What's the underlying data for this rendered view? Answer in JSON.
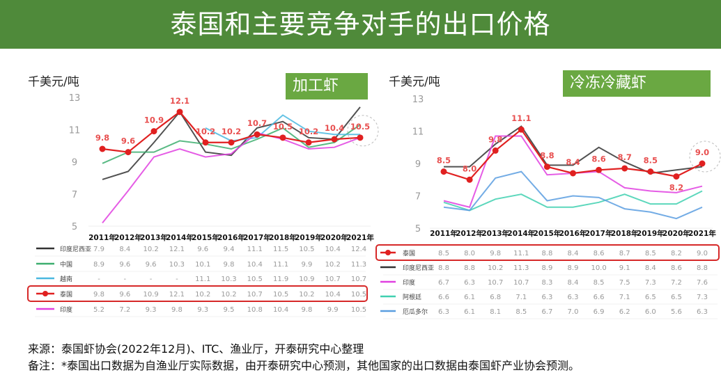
{
  "title": "泰国和主要竞争对手的出口价格",
  "footer": {
    "source": "来源：泰国虾协会(2022年12月)、ITC、渔业厅，开泰研究中心整理",
    "note": "备注：*泰国出口数据为自渔业厅实际数据，由开泰研究中心预测，其他国家的出口数据由泰国虾产业协会预测。"
  },
  "chart_data": [
    {
      "type": "line",
      "tag": "加工虾",
      "ylabel": "千美元/吨",
      "ylim": [
        5,
        13
      ],
      "yticks": [
        5,
        7,
        9,
        11,
        13
      ],
      "categories": [
        "2011年",
        "2012年",
        "2013年",
        "2014年",
        "2015年",
        "2016年",
        "2017年",
        "2018年",
        "2019年",
        "2020年",
        "2021年"
      ],
      "highlight_series": "泰国",
      "series": [
        {
          "name": "印度尼西亚",
          "color": "#333333",
          "values": [
            7.9,
            8.4,
            10.2,
            12.1,
            9.6,
            9.4,
            11.1,
            11.5,
            10.5,
            10.4,
            12.4
          ]
        },
        {
          "name": "中国",
          "color": "#3cae6e",
          "values": [
            8.9,
            9.6,
            9.6,
            10.3,
            10.1,
            9.8,
            10.4,
            11.1,
            9.9,
            10.2,
            11.3
          ]
        },
        {
          "name": "越南",
          "color": "#4ab8e0",
          "values": [
            null,
            null,
            null,
            null,
            11.1,
            10.3,
            10.5,
            11.9,
            10.9,
            10.7,
            10.7
          ],
          "table_text": [
            "-",
            "-",
            "-",
            "-",
            "11.1",
            "10.3",
            "10.5",
            "11.9",
            "10.9",
            "10.7",
            "10.7"
          ]
        },
        {
          "name": "泰国",
          "color": "#e02020",
          "values": [
            9.8,
            9.6,
            10.9,
            12.1,
            10.2,
            10.2,
            10.7,
            10.5,
            10.2,
            10.4,
            10.5
          ]
        },
        {
          "name": "印度",
          "color": "#e040e0",
          "values": [
            5.2,
            7.2,
            9.3,
            9.8,
            9.3,
            9.5,
            10.8,
            10.4,
            9.8,
            9.9,
            10.5
          ]
        }
      ]
    },
    {
      "type": "line",
      "tag": "冷冻冷藏虾",
      "ylabel": "千美元/吨",
      "ylim": [
        5,
        13
      ],
      "yticks": [
        5,
        7,
        9,
        11,
        13
      ],
      "categories": [
        "2011年",
        "2012年",
        "2013年",
        "2014年",
        "2015年",
        "2016年",
        "2017年",
        "2018年",
        "2019年",
        "2020年",
        "2021年"
      ],
      "highlight_series": "泰国",
      "series": [
        {
          "name": "泰国",
          "color": "#e02020",
          "values": [
            8.5,
            8.0,
            9.8,
            11.1,
            8.8,
            8.4,
            8.6,
            8.7,
            8.5,
            8.2,
            9.0
          ]
        },
        {
          "name": "印度尼西亚",
          "color": "#333333",
          "values": [
            8.8,
            8.8,
            10.2,
            11.3,
            8.9,
            8.9,
            10.0,
            9.1,
            8.4,
            8.6,
            8.8
          ]
        },
        {
          "name": "印度",
          "color": "#e040e0",
          "values": [
            6.7,
            6.3,
            10.7,
            10.7,
            8.3,
            8.4,
            8.5,
            7.5,
            7.3,
            7.2,
            7.6
          ]
        },
        {
          "name": "阿根廷",
          "color": "#40d0b0",
          "values": [
            6.6,
            6.1,
            6.8,
            7.1,
            6.3,
            6.3,
            6.6,
            7.1,
            6.5,
            6.5,
            7.3
          ]
        },
        {
          "name": "厄瓜多尔",
          "color": "#5a9ee0",
          "values": [
            6.3,
            6.1,
            8.1,
            8.5,
            6.7,
            7.0,
            6.9,
            6.2,
            6.0,
            5.6,
            6.3
          ]
        }
      ]
    }
  ]
}
